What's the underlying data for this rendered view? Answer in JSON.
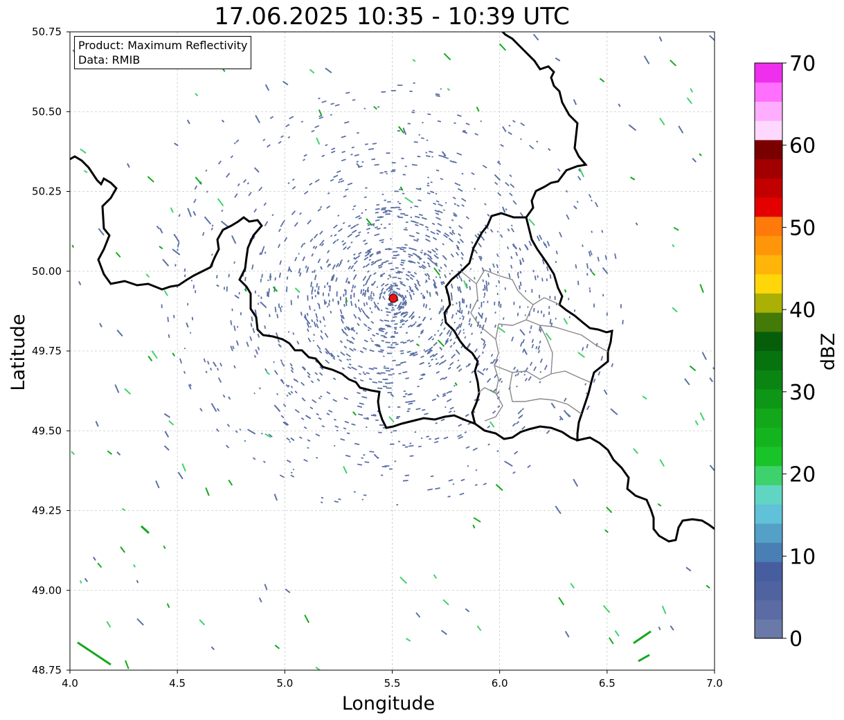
{
  "title": "17.06.2025 10:35 - 10:39 UTC",
  "legend": {
    "product": "Product: Maximum Reflectivity",
    "data": "Data: RMIB"
  },
  "x_axis": {
    "label": "Longitude",
    "range": [
      4.0,
      7.0
    ],
    "ticks": [
      "4.0",
      "4.5",
      "5.0",
      "5.5",
      "6.0",
      "6.5",
      "7.0"
    ]
  },
  "y_axis": {
    "label": "Latitude",
    "range": [
      48.75,
      50.75
    ],
    "ticks": [
      "48.75",
      "49.00",
      "49.25",
      "49.50",
      "49.75",
      "50.00",
      "50.25",
      "50.50",
      "50.75"
    ]
  },
  "radar_site": {
    "lon": 5.505,
    "lat": 49.915,
    "color": "#ee1111"
  },
  "colorbar": {
    "label": "dBZ",
    "range": [
      0,
      70
    ],
    "ticks": [
      "0",
      "10",
      "20",
      "30",
      "40",
      "50",
      "60",
      "70"
    ],
    "colors": [
      "#6a7aa8",
      "#5a6ca3",
      "#4f63a0",
      "#465ea0",
      "#4a7fb5",
      "#55a0c6",
      "#60c1d8",
      "#60d6c2",
      "#3ed26c",
      "#18c428",
      "#14b41e",
      "#12a81a",
      "#0e9716",
      "#0a8512",
      "#07730e",
      "#065e0b",
      "#447a07",
      "#aab004",
      "#ffd60a",
      "#ffb40a",
      "#ff960a",
      "#ff7a0a",
      "#e50000",
      "#c20000",
      "#a20000",
      "#7a0000",
      "#ffd8ff",
      "#ffaeff",
      "#ff70ff",
      "#ee30ee"
    ]
  },
  "echo_colors": {
    "weak": "#5a6fa3",
    "light_green": "#3ed26c",
    "green": "#12a81a",
    "cyan": "#60c1d8"
  }
}
